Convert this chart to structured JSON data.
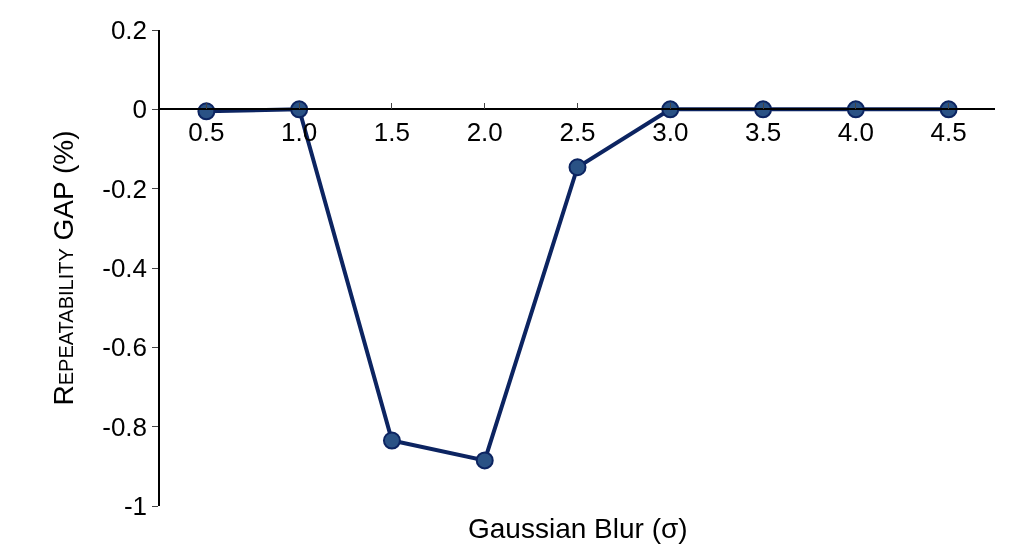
{
  "chart_data": {
    "type": "line",
    "xlabel": "Gaussian Blur (σ)",
    "ylabel": "Repeatability GAP (%)",
    "categories": [
      "0.5",
      "1.0",
      "1.5",
      "2.0",
      "2.5",
      "3.0",
      "3.5",
      "4.0",
      "4.5"
    ],
    "series": [
      {
        "color": "#0c2461",
        "values": [
          -0.005,
          0,
          -0.835,
          -0.885,
          -0.146,
          0,
          0,
          0,
          0
        ]
      }
    ],
    "ylim": [
      -1,
      0.2
    ],
    "yticks": [
      {
        "value": -1,
        "label": "-1"
      },
      -0.8,
      -0.6,
      -0.4,
      -0.2,
      0,
      0.2
    ],
    "legend": false,
    "marker": "circle",
    "line_style": "solid"
  }
}
